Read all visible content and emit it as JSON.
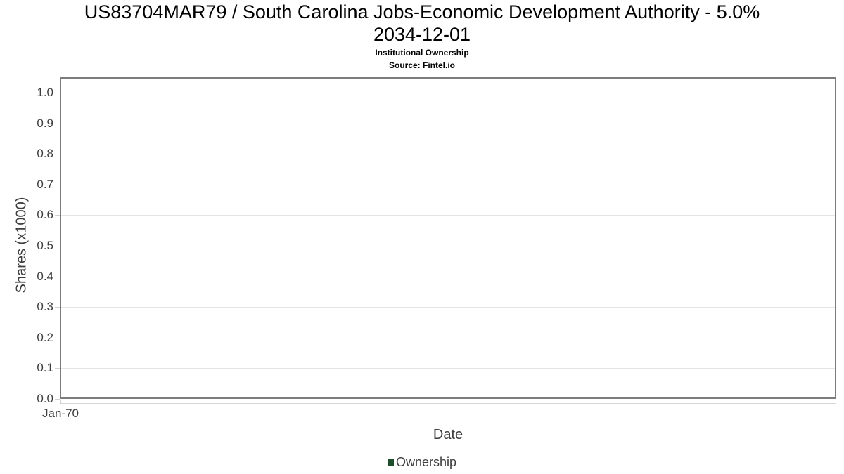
{
  "header": {
    "title_line1": "US83704MAR79 / South Carolina Jobs-Economic Development Authority - 5.0%",
    "title_line2": "2034-12-01",
    "subtitle": "Institutional Ownership",
    "source": "Source: Fintel.io"
  },
  "chart_data": {
    "type": "line",
    "title": "US83704MAR79 / South Carolina Jobs-Economic Development Authority - 5.0% 2034-12-01",
    "subtitle": "Institutional Ownership",
    "source_note": "Source: Fintel.io",
    "xlabel": "Date",
    "ylabel": "Shares (x1000)",
    "ylim": [
      0.0,
      1.0
    ],
    "y_tick_step": 0.1,
    "y_ticks": [
      "1.0",
      "0.9",
      "0.8",
      "0.7",
      "0.6",
      "0.5",
      "0.4",
      "0.3",
      "0.2",
      "0.1",
      "0.0"
    ],
    "x_ticks": [
      "Jan-70"
    ],
    "grid": true,
    "legend_position": "bottom-center",
    "series": [
      {
        "name": "Ownership",
        "color": "#1e4d2b",
        "x": [],
        "values": []
      }
    ]
  },
  "legend": {
    "items": [
      {
        "label": "Ownership",
        "color": "#1e4d2b"
      }
    ]
  },
  "colors": {
    "title_text": "#000000",
    "axis_text": "#3d3d3d",
    "plot_border": "#7c7c7c",
    "gridline": "#e4e4e4",
    "tick_mark": "#cfcfcf",
    "under_axis_line": "#d6d6d6",
    "background": "#ffffff",
    "legend_marker": "#1e4d2b"
  }
}
